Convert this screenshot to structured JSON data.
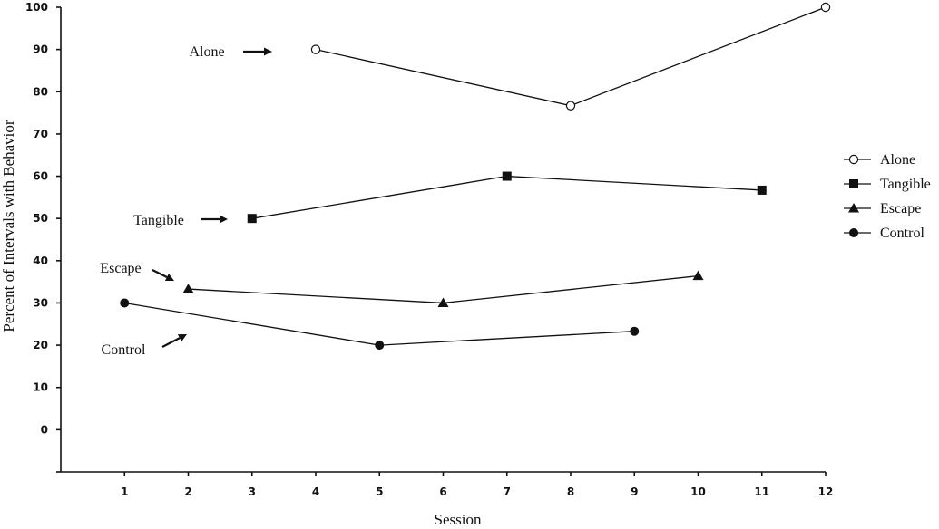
{
  "chart_data": {
    "type": "line",
    "title": "",
    "xlabel": "Session",
    "ylabel": "Percent of Intervals with Behavior",
    "x_ticks": [
      1,
      2,
      3,
      4,
      5,
      6,
      7,
      8,
      9,
      10,
      11,
      12
    ],
    "y_ticks": [
      0,
      10,
      20,
      30,
      40,
      50,
      60,
      70,
      80,
      90,
      100
    ],
    "xlim": [
      0,
      12
    ],
    "ylim": [
      -10,
      100
    ],
    "grid": false,
    "legend_position": "right",
    "series": [
      {
        "name": "Alone",
        "marker": "open-circle",
        "color": "#111111",
        "points": [
          {
            "x": 4,
            "y": 90
          },
          {
            "x": 8,
            "y": 76.7
          },
          {
            "x": 12,
            "y": 100
          }
        ]
      },
      {
        "name": "Tangible",
        "marker": "square",
        "color": "#111111",
        "points": [
          {
            "x": 3,
            "y": 50
          },
          {
            "x": 7,
            "y": 60
          },
          {
            "x": 11,
            "y": 56.7
          }
        ]
      },
      {
        "name": "Escape",
        "marker": "triangle",
        "color": "#111111",
        "points": [
          {
            "x": 2,
            "y": 33.3
          },
          {
            "x": 6,
            "y": 30
          },
          {
            "x": 10,
            "y": 36.4
          }
        ]
      },
      {
        "name": "Control",
        "marker": "filled-circle",
        "color": "#111111",
        "points": [
          {
            "x": 1,
            "y": 30
          },
          {
            "x": 5,
            "y": 20
          },
          {
            "x": 9,
            "y": 23.3
          }
        ]
      }
    ],
    "annotations": [
      {
        "text": "Alone",
        "series": "Alone"
      },
      {
        "text": "Tangible",
        "series": "Tangible"
      },
      {
        "text": "Escape",
        "series": "Escape"
      },
      {
        "text": "Control",
        "series": "Control"
      }
    ]
  }
}
